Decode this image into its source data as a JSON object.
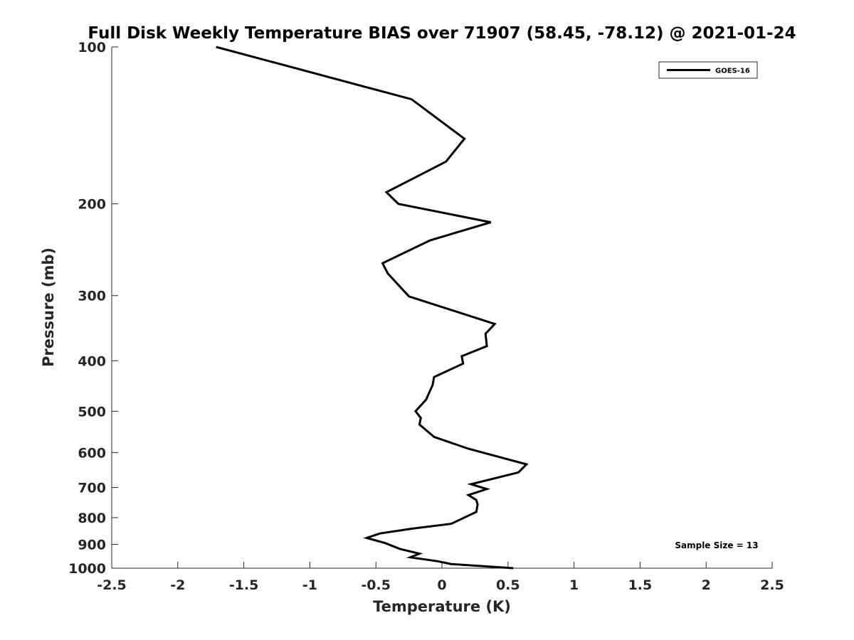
{
  "chart_data": {
    "type": "line",
    "title": "Full Disk Weekly Temperature BIAS over 71907 (58.45, -78.12) @ 2021-01-24",
    "xlabel": "Temperature (K)",
    "ylabel": "Pressure (mb)",
    "xlim": [
      -2.5,
      2.5
    ],
    "ylim": [
      1000,
      100
    ],
    "yscale": "log",
    "x_ticks": [
      -2.5,
      -2,
      -1.5,
      -1,
      -0.5,
      0,
      0.5,
      1,
      1.5,
      2,
      2.5
    ],
    "x_tick_labels": [
      "-2.5",
      "-2",
      "-1.5",
      "-1",
      "-0.5",
      "0",
      "0.5",
      "1",
      "1.5",
      "2",
      "2.5"
    ],
    "y_ticks": [
      100,
      200,
      300,
      400,
      500,
      600,
      700,
      800,
      900,
      1000
    ],
    "y_tick_labels": [
      "100",
      "200",
      "300",
      "400",
      "500",
      "600",
      "700",
      "800",
      "900",
      "1000"
    ],
    "grid": false,
    "legend_position": "top-right",
    "series": [
      {
        "name": "GOES-16",
        "color": "#000000",
        "points": [
          [
            -1.71,
            100
          ],
          [
            -0.23,
            126
          ],
          [
            0.17,
            150
          ],
          [
            0.03,
            166
          ],
          [
            -0.42,
            190
          ],
          [
            -0.33,
            200
          ],
          [
            0.37,
            217
          ],
          [
            -0.09,
            235
          ],
          [
            -0.45,
            260
          ],
          [
            -0.41,
            272
          ],
          [
            -0.25,
            301
          ],
          [
            0.4,
            340
          ],
          [
            0.33,
            355
          ],
          [
            0.34,
            375
          ],
          [
            0.15,
            392
          ],
          [
            0.16,
            405
          ],
          [
            -0.06,
            430
          ],
          [
            -0.07,
            445
          ],
          [
            -0.12,
            475
          ],
          [
            -0.2,
            500
          ],
          [
            -0.16,
            515
          ],
          [
            -0.17,
            530
          ],
          [
            -0.06,
            560
          ],
          [
            0.2,
            590
          ],
          [
            0.64,
            632
          ],
          [
            0.58,
            655
          ],
          [
            0.22,
            690
          ],
          [
            0.34,
            705
          ],
          [
            0.2,
            724
          ],
          [
            0.26,
            740
          ],
          [
            0.27,
            755
          ],
          [
            0.26,
            780
          ],
          [
            0.07,
            822
          ],
          [
            -0.23,
            840
          ],
          [
            -0.47,
            858
          ],
          [
            -0.57,
            875
          ],
          [
            -0.43,
            895
          ],
          [
            -0.32,
            918
          ],
          [
            -0.17,
            938
          ],
          [
            -0.24,
            953
          ],
          [
            -0.03,
            970
          ],
          [
            0.07,
            982
          ],
          [
            0.54,
            1000
          ]
        ]
      }
    ],
    "annotations": [
      "Sample Size = 13"
    ]
  }
}
